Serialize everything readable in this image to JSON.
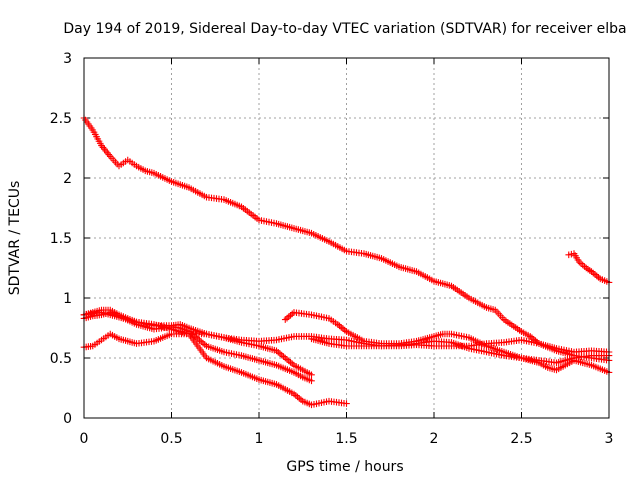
{
  "chart_data": {
    "type": "scatter",
    "title": "Day 194 of 2019, Sidereal Day-to-day VTEC variation (SDTVAR) for receiver elba",
    "xlabel": "GPS time / hours",
    "ylabel": "SDTVAR / TECUs",
    "xlim": [
      0,
      3
    ],
    "ylim": [
      0,
      3
    ],
    "x_ticks": [
      "0",
      "0.5",
      "1",
      "1.5",
      "2",
      "2.5",
      "3"
    ],
    "x_tick_values": [
      0,
      0.5,
      1,
      1.5,
      2,
      2.5,
      3
    ],
    "y_ticks": [
      "0",
      "0.5",
      "1",
      "1.5",
      "2",
      "2.5",
      "3"
    ],
    "y_tick_values": [
      0,
      0.5,
      1,
      1.5,
      2,
      2.5,
      3
    ],
    "grid": true,
    "marker": "+",
    "color": "#ff0000",
    "series": [
      {
        "name": "trace-1",
        "points": [
          [
            0.0,
            2.5
          ],
          [
            0.05,
            2.4
          ],
          [
            0.1,
            2.27
          ],
          [
            0.15,
            2.18
          ],
          [
            0.2,
            2.1
          ],
          [
            0.25,
            2.15
          ],
          [
            0.3,
            2.1
          ],
          [
            0.35,
            2.06
          ],
          [
            0.4,
            2.04
          ],
          [
            0.5,
            1.97
          ],
          [
            0.6,
            1.92
          ],
          [
            0.7,
            1.84
          ],
          [
            0.8,
            1.82
          ],
          [
            0.9,
            1.76
          ],
          [
            1.0,
            1.65
          ],
          [
            1.1,
            1.62
          ],
          [
            1.2,
            1.58
          ],
          [
            1.3,
            1.54
          ],
          [
            1.4,
            1.47
          ],
          [
            1.5,
            1.39
          ],
          [
            1.6,
            1.37
          ],
          [
            1.7,
            1.33
          ],
          [
            1.8,
            1.26
          ],
          [
            1.9,
            1.22
          ],
          [
            2.0,
            1.14
          ],
          [
            2.1,
            1.1
          ],
          [
            2.2,
            1.0
          ],
          [
            2.3,
            0.92
          ],
          [
            2.35,
            0.9
          ],
          [
            2.4,
            0.82
          ],
          [
            2.5,
            0.72
          ],
          [
            2.55,
            0.68
          ],
          [
            2.6,
            0.62
          ],
          [
            2.7,
            0.56
          ],
          [
            2.8,
            0.52
          ],
          [
            2.9,
            0.5
          ],
          [
            3.0,
            0.48
          ]
        ]
      },
      {
        "name": "trace-2",
        "points": [
          [
            0.0,
            0.83
          ],
          [
            0.05,
            0.85
          ],
          [
            0.1,
            0.86
          ],
          [
            0.15,
            0.88
          ],
          [
            0.2,
            0.85
          ],
          [
            0.3,
            0.78
          ],
          [
            0.4,
            0.74
          ],
          [
            0.5,
            0.76
          ],
          [
            0.55,
            0.75
          ],
          [
            0.6,
            0.72
          ],
          [
            0.65,
            0.66
          ],
          [
            0.7,
            0.6
          ],
          [
            0.8,
            0.55
          ],
          [
            0.9,
            0.52
          ],
          [
            1.0,
            0.48
          ],
          [
            1.1,
            0.44
          ],
          [
            1.2,
            0.38
          ],
          [
            1.25,
            0.34
          ],
          [
            1.3,
            0.31
          ]
        ]
      },
      {
        "name": "trace-3",
        "points": [
          [
            0.0,
            0.86
          ],
          [
            0.05,
            0.88
          ],
          [
            0.1,
            0.9
          ],
          [
            0.15,
            0.9
          ],
          [
            0.2,
            0.86
          ],
          [
            0.3,
            0.8
          ],
          [
            0.4,
            0.78
          ],
          [
            0.5,
            0.74
          ],
          [
            0.6,
            0.7
          ],
          [
            0.65,
            0.6
          ],
          [
            0.7,
            0.5
          ],
          [
            0.8,
            0.43
          ],
          [
            0.9,
            0.38
          ],
          [
            1.0,
            0.32
          ],
          [
            1.1,
            0.28
          ],
          [
            1.2,
            0.2
          ],
          [
            1.25,
            0.14
          ],
          [
            1.3,
            0.11
          ],
          [
            1.4,
            0.14
          ],
          [
            1.5,
            0.12
          ]
        ]
      },
      {
        "name": "trace-4",
        "points": [
          [
            0.0,
            0.59
          ],
          [
            0.05,
            0.6
          ],
          [
            0.1,
            0.65
          ],
          [
            0.15,
            0.7
          ],
          [
            0.2,
            0.66
          ],
          [
            0.3,
            0.62
          ],
          [
            0.4,
            0.64
          ],
          [
            0.5,
            0.7
          ],
          [
            0.6,
            0.7
          ],
          [
            0.7,
            0.7
          ],
          [
            0.8,
            0.67
          ],
          [
            0.9,
            0.65
          ],
          [
            1.0,
            0.64
          ],
          [
            1.1,
            0.65
          ],
          [
            1.2,
            0.68
          ],
          [
            1.3,
            0.68
          ],
          [
            1.4,
            0.66
          ],
          [
            1.5,
            0.65
          ],
          [
            1.6,
            0.62
          ],
          [
            1.7,
            0.6
          ],
          [
            1.8,
            0.6
          ],
          [
            1.9,
            0.61
          ],
          [
            2.0,
            0.6
          ],
          [
            2.1,
            0.6
          ],
          [
            2.2,
            0.6
          ],
          [
            2.3,
            0.62
          ],
          [
            2.4,
            0.63
          ],
          [
            2.5,
            0.65
          ],
          [
            2.6,
            0.62
          ],
          [
            2.7,
            0.58
          ],
          [
            2.8,
            0.55
          ],
          [
            2.9,
            0.56
          ],
          [
            3.0,
            0.55
          ]
        ]
      },
      {
        "name": "trace-5",
        "points": [
          [
            0.0,
            0.86
          ],
          [
            0.1,
            0.88
          ],
          [
            0.2,
            0.84
          ],
          [
            0.3,
            0.8
          ],
          [
            0.4,
            0.77
          ],
          [
            0.5,
            0.77
          ],
          [
            0.55,
            0.78
          ],
          [
            0.6,
            0.75
          ],
          [
            0.7,
            0.7
          ],
          [
            0.8,
            0.67
          ],
          [
            0.9,
            0.63
          ],
          [
            1.0,
            0.6
          ],
          [
            1.05,
            0.58
          ],
          [
            1.1,
            0.56
          ],
          [
            1.15,
            0.5
          ],
          [
            1.2,
            0.44
          ],
          [
            1.25,
            0.4
          ],
          [
            1.3,
            0.36
          ]
        ]
      },
      {
        "name": "trace-6",
        "points": [
          [
            1.15,
            0.82
          ],
          [
            1.2,
            0.88
          ],
          [
            1.3,
            0.86
          ],
          [
            1.4,
            0.83
          ],
          [
            1.45,
            0.78
          ],
          [
            1.5,
            0.72
          ],
          [
            1.6,
            0.64
          ],
          [
            1.7,
            0.62
          ],
          [
            1.8,
            0.62
          ],
          [
            1.9,
            0.64
          ],
          [
            2.0,
            0.68
          ],
          [
            2.05,
            0.7
          ],
          [
            2.1,
            0.7
          ],
          [
            2.2,
            0.67
          ],
          [
            2.3,
            0.6
          ],
          [
            2.4,
            0.55
          ],
          [
            2.5,
            0.5
          ],
          [
            2.6,
            0.46
          ],
          [
            2.65,
            0.42
          ],
          [
            2.7,
            0.4
          ],
          [
            2.75,
            0.44
          ],
          [
            2.8,
            0.48
          ],
          [
            2.9,
            0.44
          ],
          [
            3.0,
            0.38
          ]
        ]
      },
      {
        "name": "trace-7",
        "points": [
          [
            1.3,
            0.66
          ],
          [
            1.4,
            0.62
          ],
          [
            1.5,
            0.6
          ],
          [
            1.6,
            0.6
          ],
          [
            1.7,
            0.6
          ],
          [
            1.8,
            0.61
          ],
          [
            1.9,
            0.62
          ],
          [
            2.0,
            0.64
          ],
          [
            2.1,
            0.63
          ],
          [
            2.2,
            0.58
          ],
          [
            2.3,
            0.55
          ],
          [
            2.4,
            0.52
          ],
          [
            2.5,
            0.5
          ],
          [
            2.6,
            0.48
          ],
          [
            2.7,
            0.46
          ],
          [
            2.8,
            0.5
          ],
          [
            2.9,
            0.52
          ],
          [
            3.0,
            0.52
          ]
        ]
      },
      {
        "name": "trace-8",
        "points": [
          [
            2.77,
            1.36
          ],
          [
            2.8,
            1.37
          ],
          [
            2.83,
            1.3
          ],
          [
            2.87,
            1.25
          ],
          [
            2.9,
            1.22
          ],
          [
            2.95,
            1.16
          ],
          [
            3.0,
            1.13
          ]
        ]
      }
    ]
  }
}
